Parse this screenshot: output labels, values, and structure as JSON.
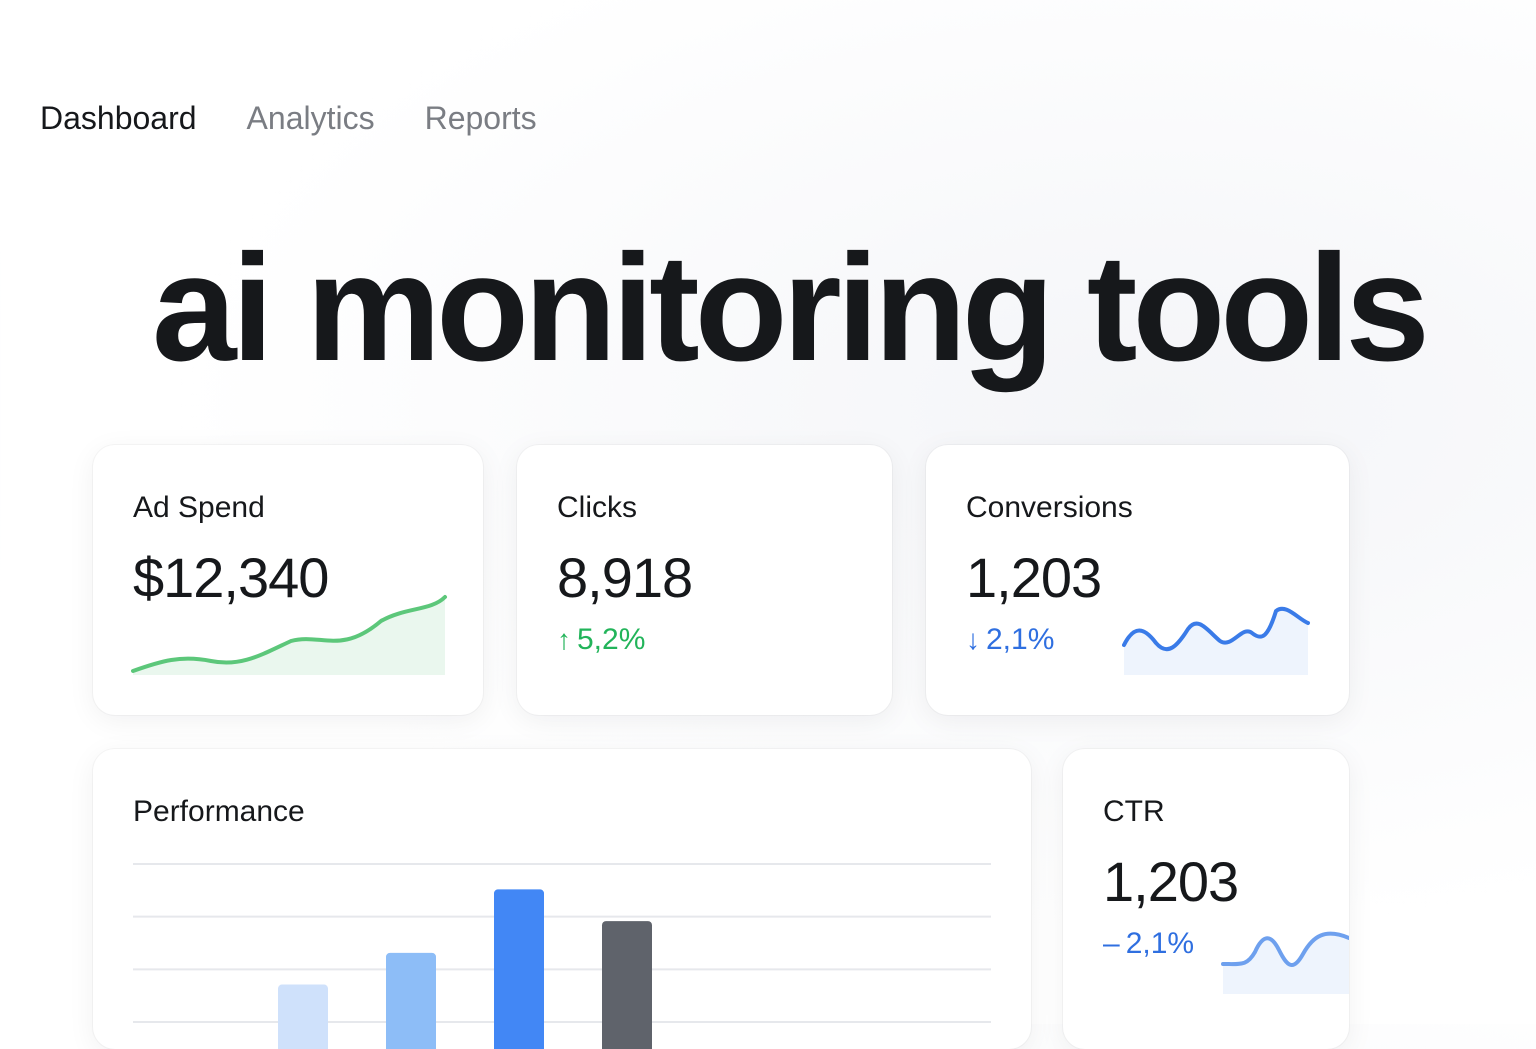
{
  "nav": {
    "items": [
      {
        "label": "Dashboard",
        "active": true
      },
      {
        "label": "Analytics",
        "active": false
      },
      {
        "label": "Reports",
        "active": false
      }
    ]
  },
  "hero": {
    "title": "ai monitoring tools"
  },
  "cards": {
    "ad_spend": {
      "title": "Ad Spend",
      "value": "$12,340",
      "trend_color": "#5cc77a"
    },
    "clicks": {
      "title": "Clicks",
      "value": "8,918",
      "delta": "5,2%",
      "delta_direction": "up",
      "delta_icon": "arrow-up-icon",
      "delta_color": "#22b45a"
    },
    "conversions": {
      "title": "Conversions",
      "value": "1,203",
      "delta": "2,1%",
      "delta_direction": "down",
      "delta_icon": "arrow-down-icon",
      "delta_color": "#2f6fe0",
      "trend_color": "#3a7be8"
    },
    "ctr": {
      "title": "CTR",
      "value": "1,203",
      "delta": "2,1%",
      "delta_prefix": "–",
      "delta_color": "#2f6fe0",
      "trend_color": "#6ea0ee"
    }
  },
  "performance": {
    "title": "Performance"
  },
  "chart_data": {
    "type": "bar",
    "title": "Performance",
    "categories": [
      "",
      "",
      "",
      "",
      "",
      "",
      "",
      ""
    ],
    "values": [
      0,
      0,
      1.3,
      1.8,
      2.8,
      2.3,
      0,
      0
    ],
    "bar_colors": [
      "#cfe1fb",
      "#cfe1fb",
      "#cfe1fb",
      "#8dbdf7",
      "#4287f5",
      "#5f636b",
      "#cfe1fb",
      "#cfe1fb"
    ],
    "gridlines": 4,
    "grid": true,
    "ylim": [
      0,
      3.2
    ]
  }
}
